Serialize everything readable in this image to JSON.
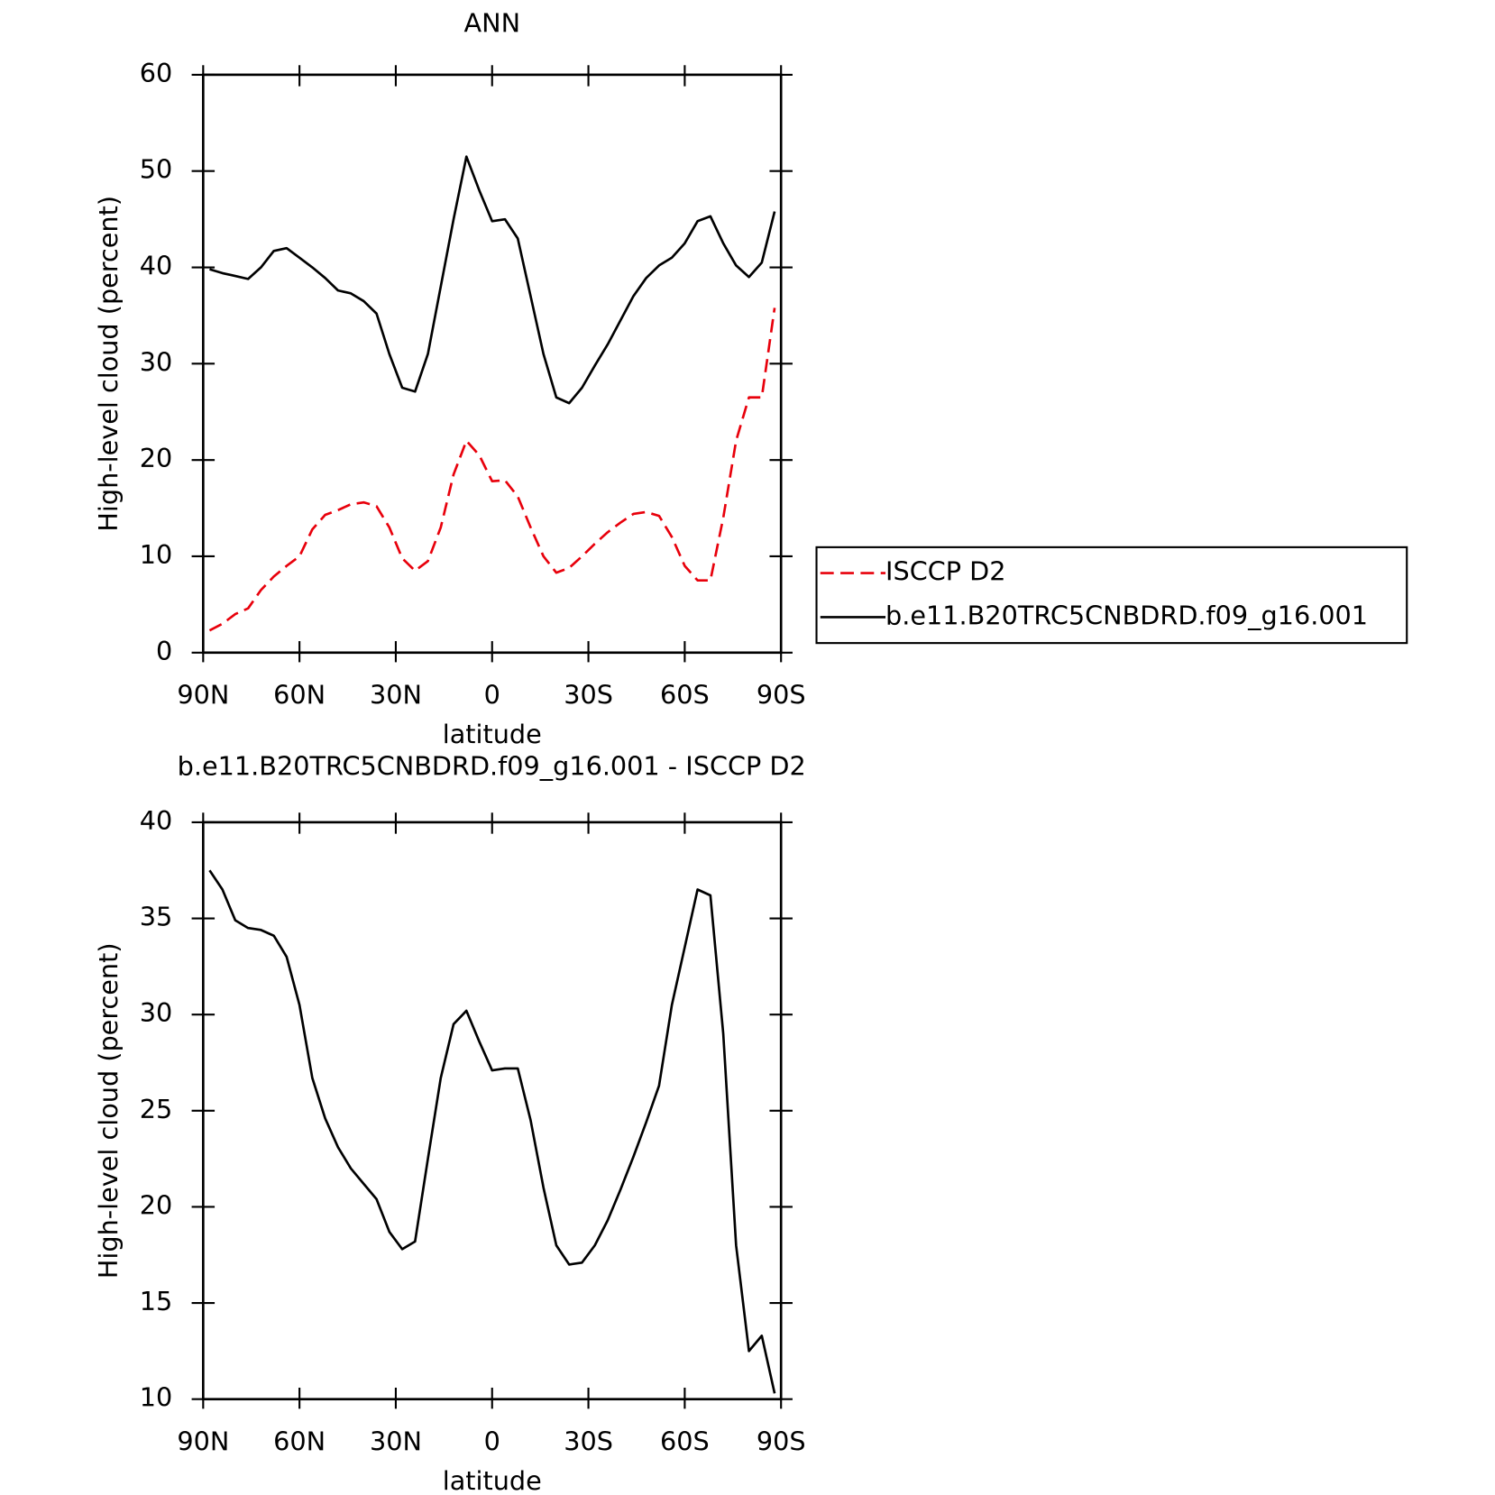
{
  "chart_data": [
    {
      "type": "line",
      "title": "ANN",
      "xlabel": "latitude",
      "ylabel": "High-level cloud (percent)",
      "x": [
        88,
        84,
        80,
        76,
        72,
        68,
        64,
        60,
        56,
        52,
        48,
        44,
        40,
        36,
        32,
        28,
        24,
        20,
        16,
        12,
        8,
        4,
        0,
        -4,
        -8,
        -12,
        -16,
        -20,
        -24,
        -28,
        -32,
        -36,
        -40,
        -44,
        -48,
        -52,
        -56,
        -60,
        -64,
        -68,
        -72,
        -76,
        -80,
        -84,
        -88
      ],
      "series": [
        {
          "name": "ISCCP D2",
          "color": "#e8000b",
          "dash": true,
          "values": [
            2.3,
            3.0,
            4.0,
            4.6,
            6.5,
            7.9,
            9.0,
            10.0,
            12.8,
            14.3,
            14.8,
            15.4,
            15.6,
            15.2,
            13.0,
            9.8,
            8.5,
            9.5,
            13.0,
            18.5,
            22.0,
            20.5,
            17.8,
            17.9,
            16.2,
            13.0,
            10.0,
            8.3,
            8.8,
            10.0,
            11.3,
            12.5,
            13.5,
            14.4,
            14.6,
            14.2,
            12.0,
            9.0,
            7.5,
            7.5,
            14.0,
            22.0,
            26.5,
            26.5,
            35.8
          ]
        },
        {
          "name": "b.e11.B20TRC5CNBDRD.f09_g16.001",
          "color": "#000000",
          "dash": false,
          "values": [
            39.8,
            39.4,
            39.1,
            38.8,
            40.0,
            41.7,
            42.0,
            41.0,
            40.0,
            38.9,
            37.6,
            37.3,
            36.5,
            35.2,
            31.0,
            27.5,
            27.1,
            31.0,
            38.0,
            45.0,
            51.5,
            48.0,
            44.8,
            45.0,
            43.0,
            37.0,
            31.0,
            26.5,
            25.9,
            27.5,
            29.8,
            32.0,
            34.5,
            37.0,
            38.9,
            40.2,
            41.0,
            42.5,
            44.8,
            45.3,
            42.5,
            40.2,
            39.0,
            40.5,
            45.8
          ]
        }
      ],
      "xlim": [
        90,
        -90
      ],
      "xticks": [
        {
          "value": 90,
          "label": "90N"
        },
        {
          "value": 60,
          "label": "60N"
        },
        {
          "value": 30,
          "label": "30N"
        },
        0,
        {
          "value": -30,
          "label": "30S"
        },
        {
          "value": -60,
          "label": "60S"
        },
        {
          "value": -90,
          "label": "90S"
        }
      ],
      "ylim": [
        0,
        60
      ],
      "yticks": [
        0,
        10,
        20,
        30,
        40,
        50,
        60
      ],
      "legend": "right"
    },
    {
      "type": "line",
      "title": "b.e11.B20TRC5CNBDRD.f09_g16.001 - ISCCP D2",
      "xlabel": "latitude",
      "ylabel": "High-level cloud (percent)",
      "x": [
        88,
        84,
        80,
        76,
        72,
        68,
        64,
        60,
        56,
        52,
        48,
        44,
        40,
        36,
        32,
        28,
        24,
        20,
        16,
        12,
        8,
        4,
        0,
        -4,
        -8,
        -12,
        -16,
        -20,
        -24,
        -28,
        -32,
        -36,
        -40,
        -44,
        -48,
        -52,
        -56,
        -60,
        -64,
        -68,
        -72,
        -76,
        -80,
        -84,
        -88
      ],
      "series": [
        {
          "color": "#000000",
          "dash": false,
          "values": [
            37.5,
            36.5,
            34.9,
            34.5,
            34.4,
            34.1,
            33.0,
            30.5,
            26.7,
            24.6,
            23.1,
            22.0,
            21.2,
            20.4,
            18.7,
            17.8,
            18.2,
            22.5,
            26.7,
            29.5,
            30.2,
            28.6,
            27.1,
            27.2,
            27.2,
            24.5,
            21.0,
            18.0,
            17.0,
            17.1,
            18.0,
            19.3,
            20.9,
            22.6,
            24.4,
            26.3,
            30.5,
            33.5,
            36.5,
            36.2,
            29.0,
            18.0,
            12.5,
            13.3,
            10.3
          ]
        }
      ],
      "xlim": [
        90,
        -90
      ],
      "xticks": [
        {
          "value": 90,
          "label": "90N"
        },
        {
          "value": 60,
          "label": "60N"
        },
        {
          "value": 30,
          "label": "30N"
        },
        0,
        {
          "value": -30,
          "label": "30S"
        },
        {
          "value": -60,
          "label": "60S"
        },
        {
          "value": -90,
          "label": "90S"
        }
      ],
      "ylim": [
        10,
        40
      ],
      "yticks": [
        10,
        15,
        20,
        25,
        30,
        35,
        40
      ]
    }
  ]
}
